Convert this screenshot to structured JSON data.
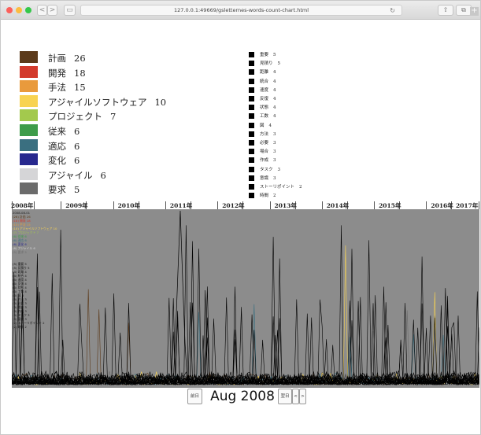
{
  "browser": {
    "url": "127.0.0.1:49669/gsletternes-words-count-chart.html",
    "back_label": "<",
    "forward_label": ">",
    "sidebar_label": "▭",
    "reload_label": "↻",
    "share_label": "⇧",
    "tabs_label": "⧉",
    "new_tab_label": "+",
    "colors": {
      "close": "#fc605b",
      "minimize": "#fdbc40",
      "zoom": "#34c84a"
    }
  },
  "legend_primary": [
    {
      "label": "計画",
      "count": "26",
      "color": "#5c3a1a"
    },
    {
      "label": "開発",
      "count": "18",
      "color": "#d33a2c"
    },
    {
      "label": "手法",
      "count": "15",
      "color": "#e99a3c"
    },
    {
      "label": "アジャイルソフトウェア",
      "count": "10",
      "color": "#f8d351"
    },
    {
      "label": "プロジェクト",
      "count": "7",
      "color": "#a3c94d"
    },
    {
      "label": "従来",
      "count": "6",
      "color": "#3e9c4a"
    },
    {
      "label": "適応",
      "count": "6",
      "color": "#3a6f80"
    },
    {
      "label": "変化",
      "count": "6",
      "color": "#27288e"
    },
    {
      "label": "アジャイル",
      "count": "6",
      "color": "#d5d5d7"
    },
    {
      "label": "要求",
      "count": "5",
      "color": "#6b6b6b"
    }
  ],
  "legend_secondary": [
    {
      "label": "重要",
      "count": "5"
    },
    {
      "label": "見積り",
      "count": "5"
    },
    {
      "label": "距離",
      "count": "4"
    },
    {
      "label": "統合",
      "count": "4"
    },
    {
      "label": "速度",
      "count": "4"
    },
    {
      "label": "反復",
      "count": "4"
    },
    {
      "label": "状態",
      "count": "4"
    },
    {
      "label": "工数",
      "count": "4"
    },
    {
      "label": "図",
      "count": "4"
    },
    {
      "label": "方法",
      "count": "3"
    },
    {
      "label": "必要",
      "count": "3"
    },
    {
      "label": "場合",
      "count": "3"
    },
    {
      "label": "作成",
      "count": "3"
    },
    {
      "label": "タスク",
      "count": "3"
    },
    {
      "label": "意識",
      "count": "3"
    },
    {
      "label": "ストーリポイント",
      "count": "2"
    },
    {
      "label": "時間",
      "count": "2"
    }
  ],
  "year_axis": [
    "2008年",
    "2009年",
    "2010年",
    "2011年",
    "2012年",
    "2013年",
    "2014年",
    "2015年",
    "2016年",
    "2017年"
  ],
  "chart_overlay": {
    "date": "2008-08-01",
    "lines": [
      "(26) 計画 26",
      "(18) 開発 18",
      "(15) 手法 15",
      "(10) アジャイルソフトウェア 10",
      "(7) プロジェクト 7",
      "(6) 従来 6",
      "(6) 適応 6",
      "(6) 変化 6",
      "(6) アジャイル 6",
      "(5) 要求 5",
      "(5) 重要 5",
      "(5) 見積り 5",
      "(4) 距離 4",
      "(4) 統合 4",
      "(4) 速度 4",
      "(4) 反復 4",
      "(4) 状態 4",
      "(4) 工数 4",
      "(4) 図 4",
      "(3) 方法 3",
      "(3) 必要 3",
      "(3) 場合 3",
      "(3) 作成 3",
      "(3) タスク 3",
      "(3) 意識 3",
      "(2) ストーリポイント 2",
      "(2) 時間 2"
    ]
  },
  "controls": {
    "prev_label": "前日",
    "date": "Aug 2008",
    "next_label": "翌日",
    "step_back_label": "<",
    "step_forward_label": ">"
  },
  "chart_data": {
    "type": "line",
    "x_range": [
      "2008-01",
      "2017-12"
    ],
    "ylim": [
      0,
      26
    ],
    "background": "#8c8c8c",
    "line_color": "#000000",
    "series_count": 27
  }
}
